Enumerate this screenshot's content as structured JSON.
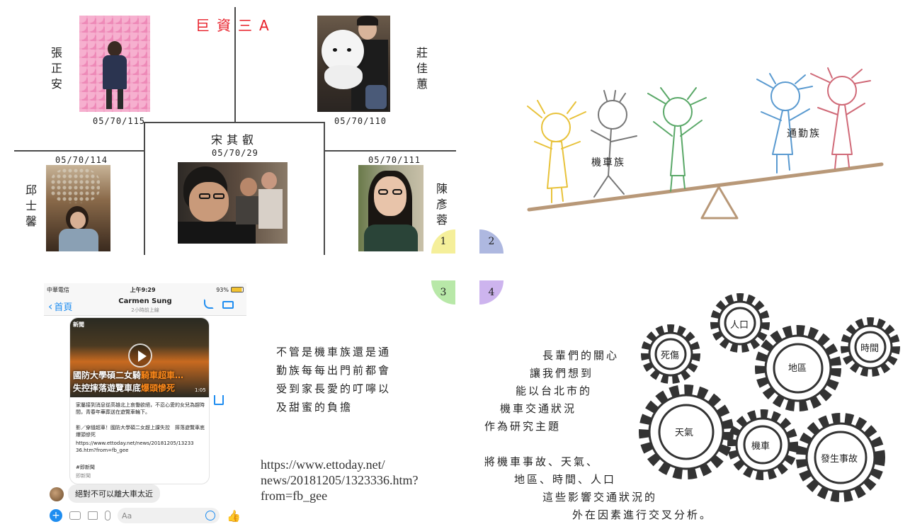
{
  "title": "巨資三A",
  "team": [
    {
      "name": "張正安",
      "date": "05/70/115"
    },
    {
      "name": "莊佳蕙",
      "date": "05/70/110"
    },
    {
      "name": "宋其叡",
      "date": "05/70/29"
    },
    {
      "name": "邱士馨",
      "date": "05/70/114"
    },
    {
      "name": "陳彥蓉",
      "date": "05/70/111"
    }
  ],
  "quadrants": [
    "1",
    "2",
    "3",
    "4"
  ],
  "seesaw": {
    "left_label": "機車族",
    "right_label": "通勤族"
  },
  "phone": {
    "status_carrier": "中華電信",
    "status_time": "上午9:29",
    "status_battery": "93%",
    "back_label": "首頁",
    "contact_name": "Carmen Sung",
    "contact_status": "2小時前上線",
    "news_brand": "新聞",
    "headline_line1": "國防大學碩二女騎",
    "headline_line2": "失控摔落遊覽車底",
    "headline_hl1": "騎車超車…",
    "headline_hl2": "爆頭慘死",
    "headline_hl2_short": "爆頭慘死",
    "video_time": "1:05",
    "article_text": "家屬接到消息從高雄北上哀慟欲絕，不忍心愛的女兒為趕時間，青春年華葬送在遊覽車輪下。",
    "article_link_title": "影／穿縫超車！國防大學碩二女趕上課失控　摔落遊覽車底爆頭慘死",
    "article_url": "https://www.ettoday.net/news/20181205/1323336.htm?from=fb_gee",
    "hashtag": "#即新聞",
    "source": "即新聞",
    "reply": "絕對不可以離大車太近",
    "input_placeholder": "Aa"
  },
  "text_block_1": [
    "不管是機車族還是通",
    "勤族每每出門前都會",
    "受到家長愛的叮嚀以",
    "及甜蜜的負擔"
  ],
  "url_text": [
    "https://www.ettoday.net/",
    "news/20181205/1323336.htm?",
    "from=fb_gee"
  ],
  "text_block_2": [
    "長輩們的關心",
    "讓我們想到",
    "能以台北市的",
    "機車交通狀況",
    "作為研究主題",
    "",
    "將機車事故、天氣、",
    "地區、時間、人口",
    "這些影響交通狀況的",
    "外在因素進行交叉分析。"
  ],
  "gears": [
    "人口",
    "死傷",
    "地區",
    "時間",
    "天氣",
    "機車",
    "發生事故"
  ],
  "colors": {
    "title_red": "#e8202a",
    "q1": "#f5ef9a",
    "q2": "#aeb8e0",
    "q3": "#b8e8a8",
    "q4": "#cdb4ee",
    "messenger_blue": "#1f8df0"
  }
}
